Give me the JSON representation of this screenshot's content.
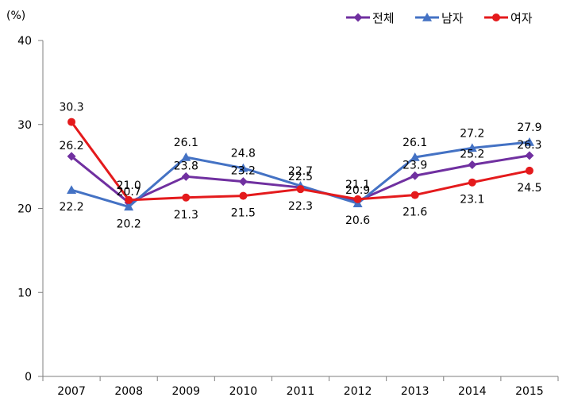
{
  "chart_data": {
    "type": "line",
    "title": "",
    "xlabel": "",
    "ylabel": "(%)",
    "ylim": [
      0,
      40
    ],
    "yticks": [
      0,
      10,
      20,
      30,
      40
    ],
    "grid": false,
    "legend_position": "top-right",
    "categories": [
      "2007",
      "2008",
      "2009",
      "2010",
      "2011",
      "2012",
      "2013",
      "2014",
      "2015"
    ],
    "series": [
      {
        "name": "전체",
        "color": "#7030a0",
        "marker": "diamond",
        "values": [
          26.2,
          20.7,
          23.8,
          23.2,
          22.5,
          20.9,
          23.9,
          25.2,
          26.3
        ]
      },
      {
        "name": "남자",
        "color": "#4472c4",
        "marker": "triangle",
        "values": [
          22.2,
          20.2,
          26.1,
          24.8,
          22.7,
          20.6,
          26.1,
          27.2,
          27.9
        ]
      },
      {
        "name": "여자",
        "color": "#e41a1c",
        "marker": "circle",
        "values": [
          30.3,
          21.0,
          21.3,
          21.5,
          22.3,
          21.1,
          21.6,
          23.1,
          24.5
        ]
      }
    ]
  }
}
